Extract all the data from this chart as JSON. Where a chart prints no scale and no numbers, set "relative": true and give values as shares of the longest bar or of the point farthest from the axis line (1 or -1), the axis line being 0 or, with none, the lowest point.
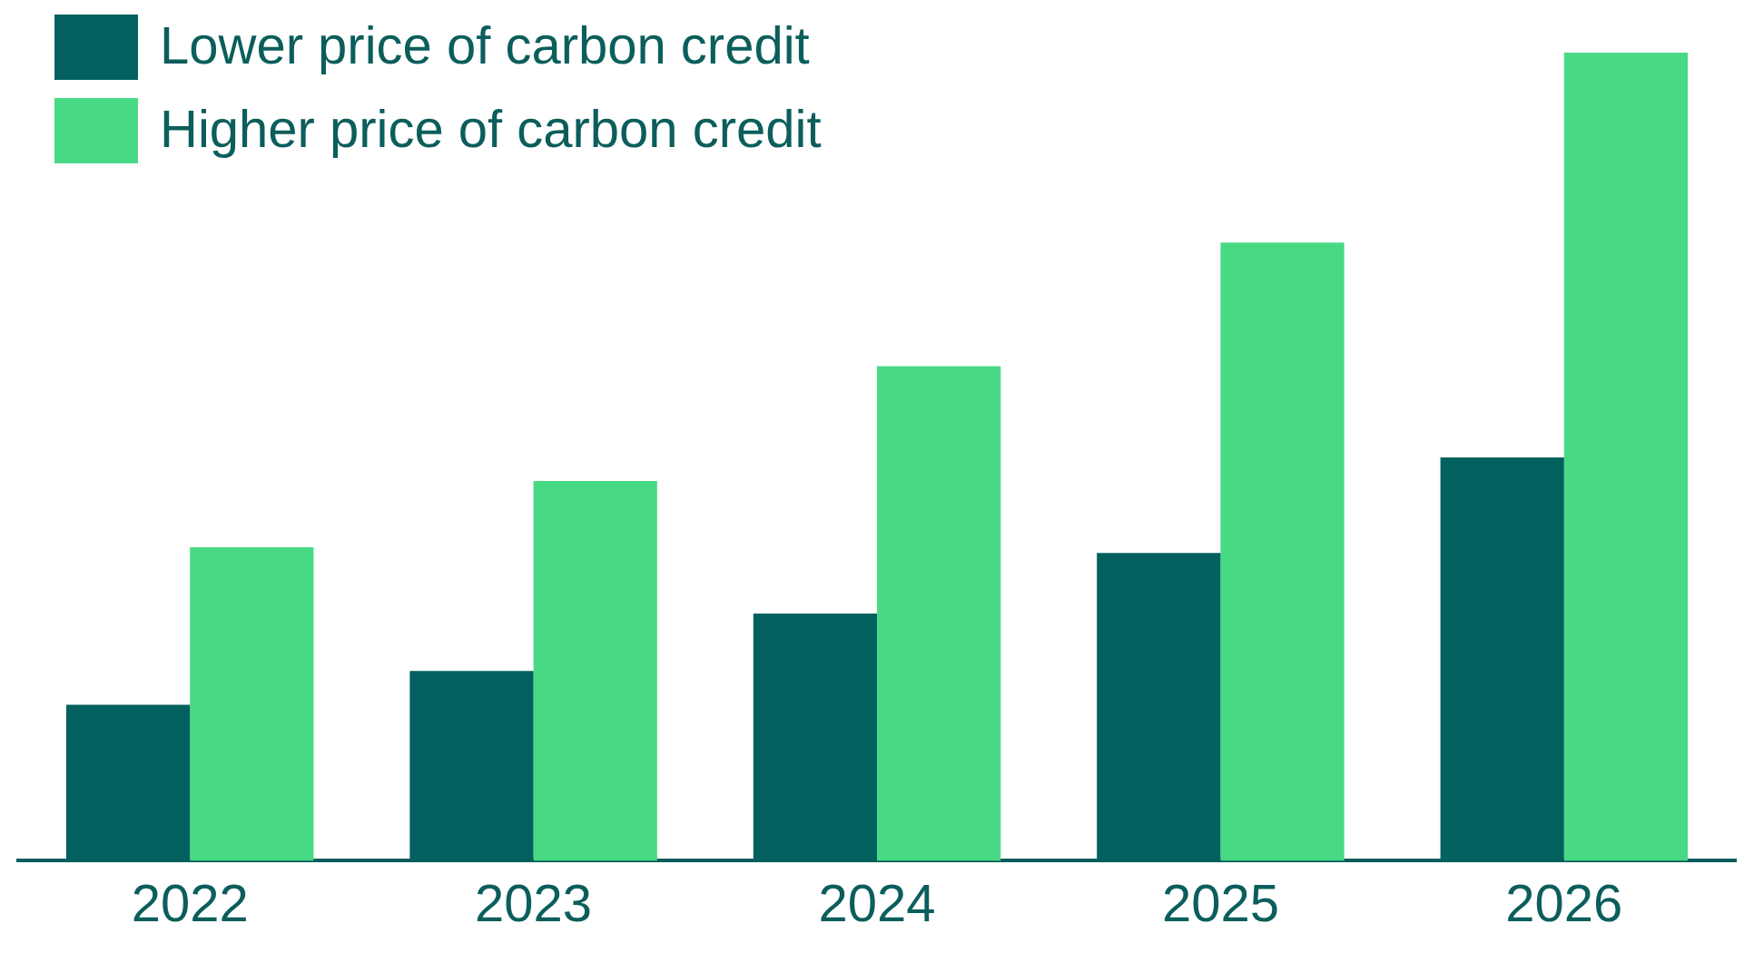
{
  "chart_data": {
    "type": "bar",
    "relative": true,
    "categories": [
      "2022",
      "2023",
      "2024",
      "2025",
      "2026"
    ],
    "series": [
      {
        "name": "Lower price of carbon credit",
        "color": "#02615e",
        "values": [
          0.193,
          0.235,
          0.306,
          0.381,
          0.499
        ]
      },
      {
        "name": "Higher price of carbon credit",
        "color": "#48d985",
        "values": [
          0.388,
          0.47,
          0.612,
          0.765,
          1
        ]
      }
    ],
    "grid": false,
    "legend": "top left"
  }
}
